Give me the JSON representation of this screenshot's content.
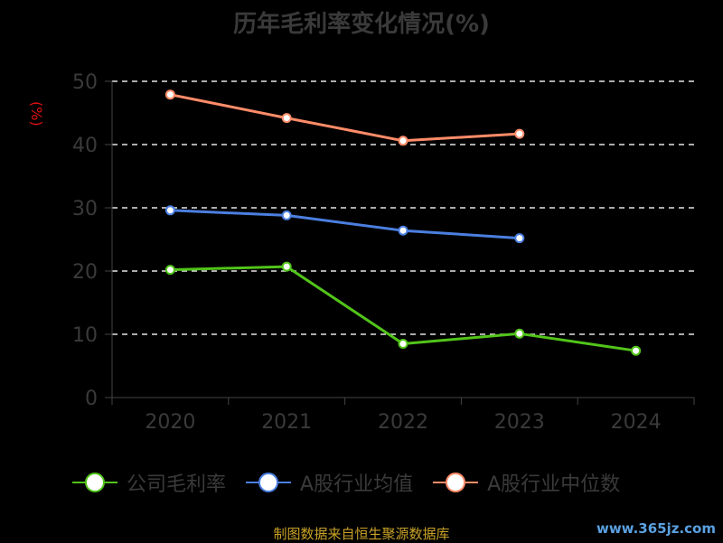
{
  "chart_data": {
    "type": "line",
    "title": "历年毛利率变化情况(%)",
    "ylabel": "(%)",
    "xlabel": "",
    "categories": [
      "2020",
      "2021",
      "2022",
      "2023",
      "2024"
    ],
    "ylim": [
      0,
      50
    ],
    "yticks": [
      0,
      10,
      20,
      30,
      40,
      50
    ],
    "grid": true,
    "legend_position": "bottom",
    "series": [
      {
        "name": "公司毛利率",
        "color": "#52c41a",
        "values": [
          20.2,
          20.7,
          8.5,
          10.1,
          7.4
        ]
      },
      {
        "name": "A股行业均值",
        "color": "#4b7fe0",
        "values": [
          29.6,
          28.8,
          26.4,
          25.2,
          null
        ]
      },
      {
        "name": "A股行业中位数",
        "color": "#ff8c69",
        "values": [
          47.9,
          44.2,
          40.6,
          41.7,
          null
        ]
      }
    ]
  },
  "footer": {
    "source": "制图数据来自恒生聚源数据库",
    "watermark": "www.365jz.com"
  }
}
